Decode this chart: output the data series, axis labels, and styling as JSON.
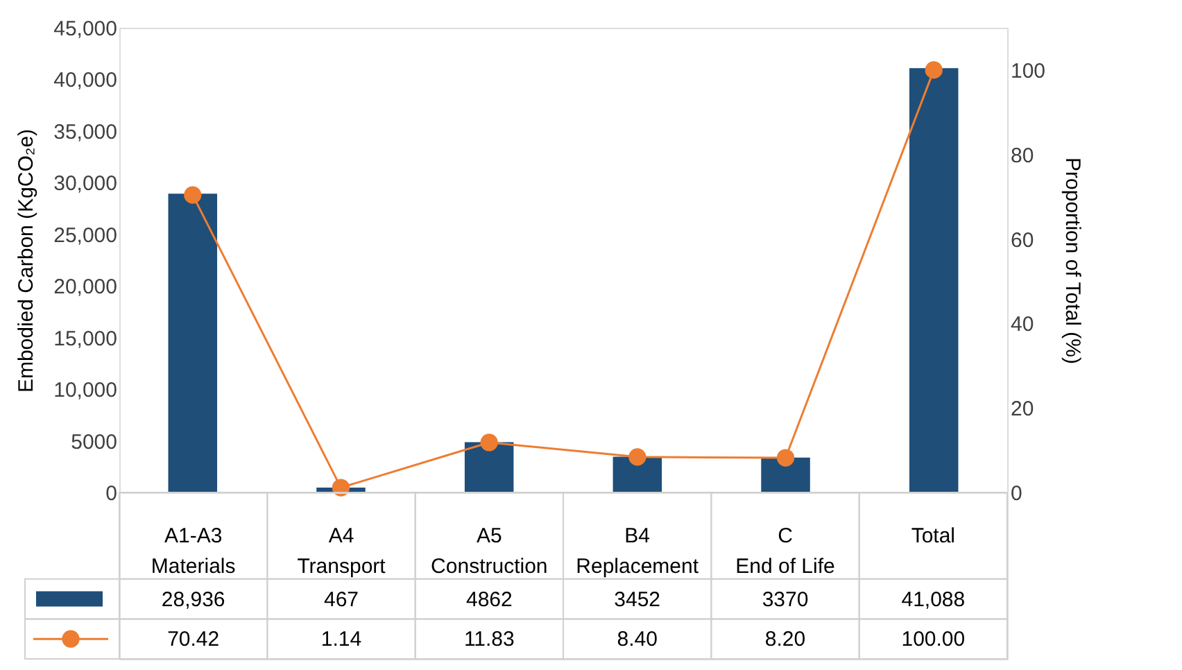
{
  "chart_data": {
    "type": "bar",
    "categories": [
      "A1-A3 Materials",
      "A4 Transport",
      "A5 Construction",
      "B4 Replacement",
      "C End of Life",
      "Total"
    ],
    "ylabel": "Embodied Carbon (KgCO₂e)",
    "y2label": "Proportion of Total (%)",
    "ylim": [
      0,
      45000
    ],
    "yticks": [
      0,
      {
        "value": 5000,
        "label": "5000"
      },
      {
        "value": 10000,
        "label": "10,000"
      },
      {
        "value": 15000,
        "label": "15,000"
      },
      {
        "value": 20000,
        "label": "20,000"
      },
      {
        "value": 25000,
        "label": "25,000"
      },
      {
        "value": 30000,
        "label": "30,000"
      },
      {
        "value": 35000,
        "label": "35,000"
      },
      {
        "value": 40000,
        "label": "40,000"
      },
      {
        "value": 45000,
        "label": "45,000"
      }
    ],
    "y2lim": [
      0,
      110
    ],
    "y2ticks": [
      0,
      20,
      40,
      60,
      80,
      100
    ],
    "series": [
      {
        "color": "#1f4e79",
        "values": [
          28936,
          467,
          4862,
          3452,
          3370,
          41088
        ],
        "value_labels": [
          "28,936",
          "467",
          "4862",
          "3452",
          "3370",
          "41,088"
        ]
      },
      {
        "type": "line",
        "axis": "y2",
        "color": "#ed7d31",
        "marker": "circle",
        "values": [
          70.42,
          1.14,
          11.83,
          8.4,
          8.2,
          100.0
        ],
        "value_labels": [
          "70.42",
          "1.14",
          "11.83",
          "8.40",
          "8.20",
          "100.00"
        ]
      }
    ],
    "grid": false
  }
}
